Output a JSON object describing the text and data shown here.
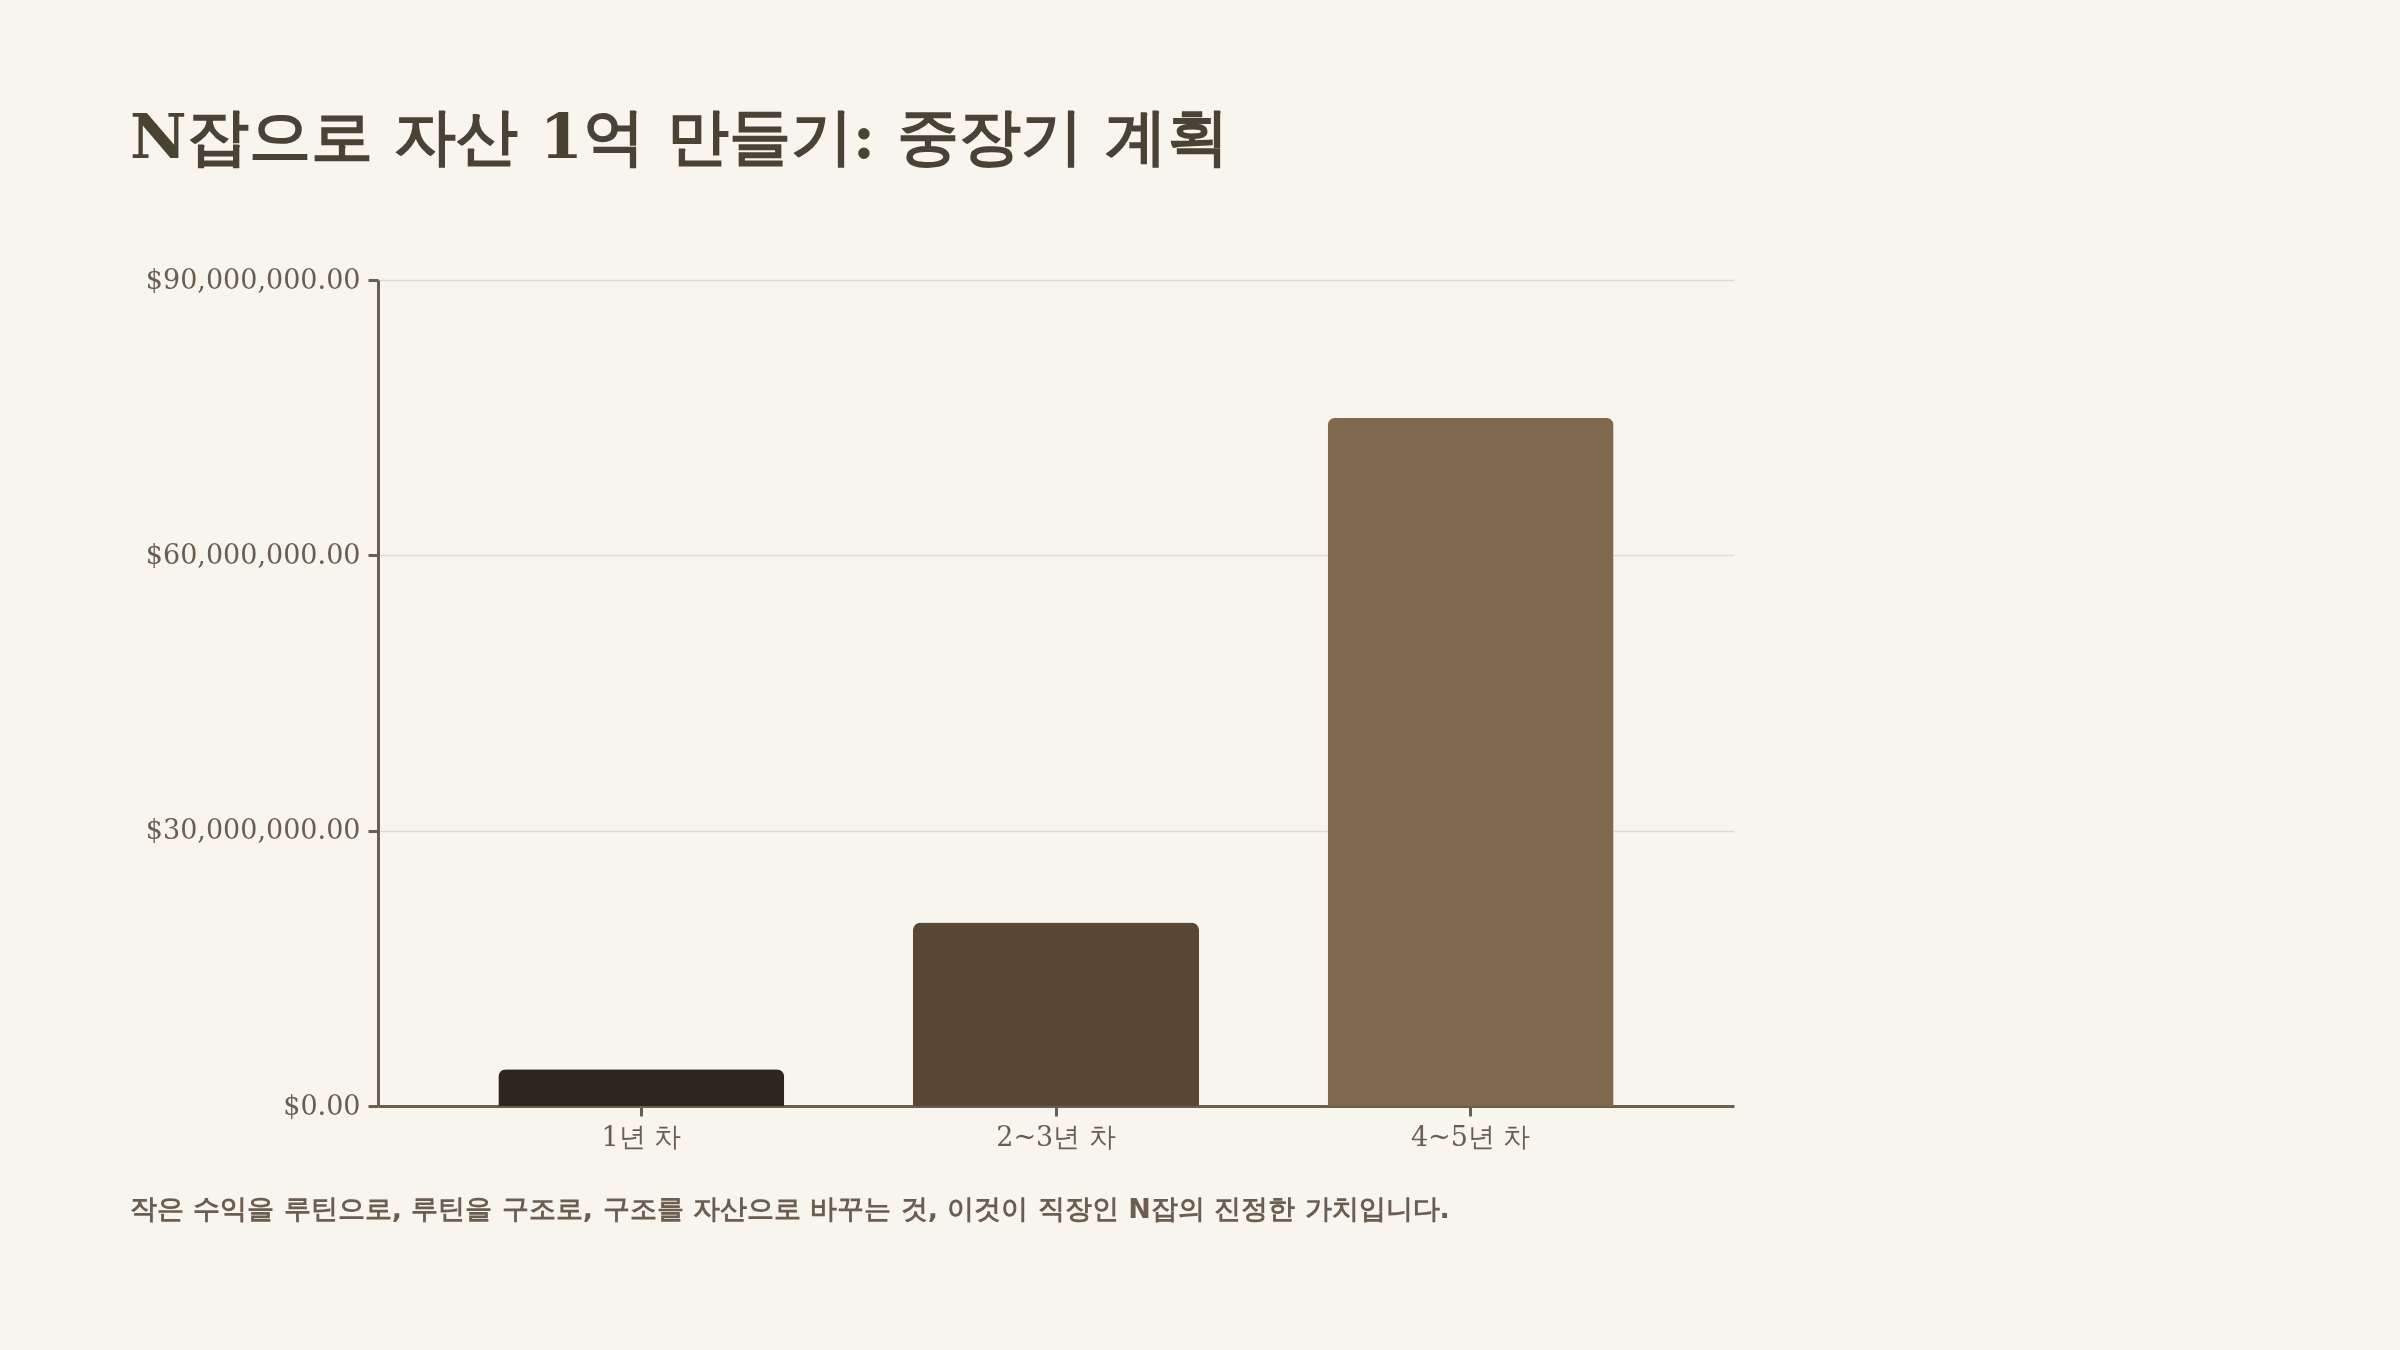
{
  "chart_data": {
    "type": "bar",
    "title": "N잡으로 자산 1억 만들기: 중장기 계획",
    "categories": [
      "1년 차",
      "2~3년 차",
      "4~5년 차"
    ],
    "values": [
      4000000,
      20000000,
      75000000
    ],
    "colors": [
      "#2e261c",
      "#5a4835",
      "#7f684b"
    ],
    "ylim": [
      0,
      90000000
    ],
    "yticks": [
      {
        "value": 0,
        "label": "$0.00"
      },
      {
        "value": 30000000,
        "label": "$30,000,000.00"
      },
      {
        "value": 60000000,
        "label": "$60,000,000.00"
      },
      {
        "value": 90000000,
        "label": "$90,000,000.00"
      }
    ],
    "grid": "y",
    "annotations": [
      "작은 수익을 루틴으로, 루틴을 구조로, 구조를 자산으로 바꾸는 것, 이것이 직장인 N잡의 진정한 가치입니다."
    ]
  }
}
